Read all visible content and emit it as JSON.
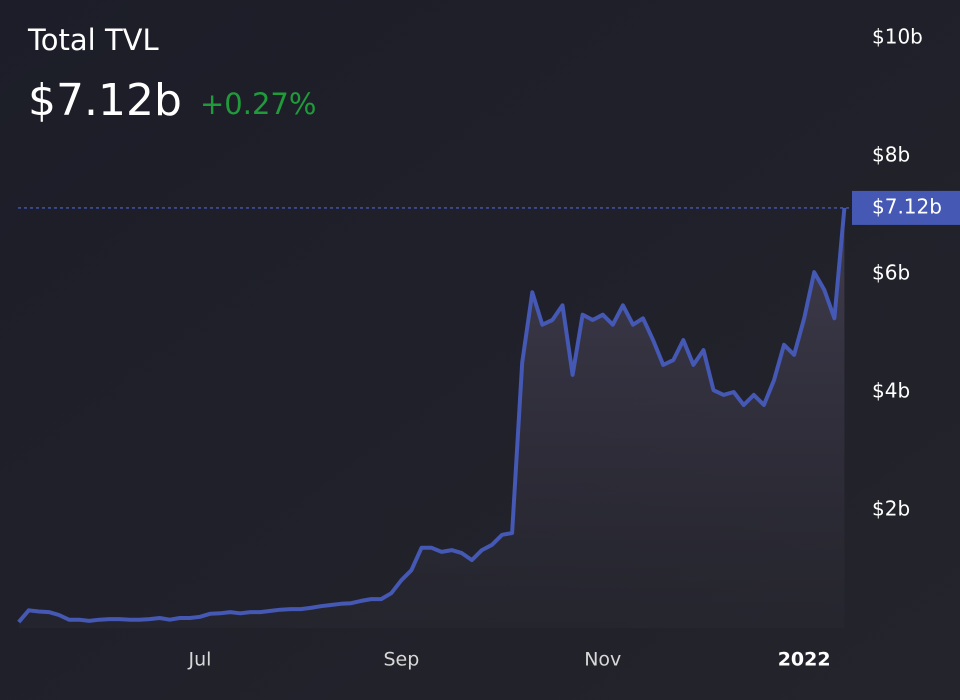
{
  "chart_data": {
    "type": "area",
    "title": "Total TVL",
    "current": "$7.12b",
    "change": "+0.27%",
    "categories": [
      null,
      null,
      null,
      null,
      null,
      null,
      null,
      null,
      null,
      null,
      null,
      null,
      null,
      null,
      null,
      null,
      null,
      null,
      "Jul",
      null,
      null,
      null,
      null,
      null,
      null,
      null,
      null,
      null,
      null,
      null,
      null,
      null,
      null,
      null,
      null,
      null,
      null,
      null,
      "Sep",
      null,
      null,
      null,
      null,
      null,
      null,
      null,
      null,
      null,
      null,
      null,
      null,
      null,
      null,
      null,
      null,
      null,
      null,
      null,
      "Nov",
      null,
      null,
      null,
      null,
      null,
      null,
      null,
      null,
      null,
      null,
      null,
      null,
      null,
      null,
      null,
      null,
      null,
      null,
      null,
      "2022",
      null,
      null,
      null,
      null
    ],
    "series": [
      {
        "color": "#4458b4",
        "values": [
          0.1,
          0.3,
          0.28,
          0.27,
          0.22,
          0.14,
          0.14,
          0.12,
          0.14,
          0.15,
          0.15,
          0.14,
          0.14,
          0.15,
          0.17,
          0.14,
          0.17,
          0.17,
          0.19,
          0.24,
          0.25,
          0.27,
          0.25,
          0.27,
          0.27,
          0.29,
          0.31,
          0.32,
          0.32,
          0.34,
          0.37,
          0.39,
          0.41,
          0.42,
          0.46,
          0.49,
          0.49,
          0.59,
          0.81,
          0.98,
          1.36,
          1.36,
          1.29,
          1.32,
          1.27,
          1.15,
          1.32,
          1.41,
          1.58,
          1.61,
          4.5,
          5.69,
          5.14,
          5.22,
          5.47,
          4.29,
          5.31,
          5.22,
          5.31,
          5.14,
          5.47,
          5.14,
          5.25,
          4.88,
          4.46,
          4.54,
          4.88,
          4.46,
          4.71,
          4.03,
          3.95,
          4.0,
          3.78,
          3.95,
          3.78,
          4.2,
          4.8,
          4.63,
          5.25,
          6.03,
          5.73,
          5.25,
          7.12
        ]
      }
    ],
    "ylim": [
      0,
      10
    ],
    "yticks": [
      {
        "value": 2,
        "label": "$2b"
      },
      {
        "value": 4,
        "label": "$4b"
      },
      {
        "value": 6,
        "label": "$6b"
      },
      {
        "value": 8,
        "label": "$8b"
      },
      {
        "value": 10,
        "label": "$10b"
      }
    ]
  }
}
